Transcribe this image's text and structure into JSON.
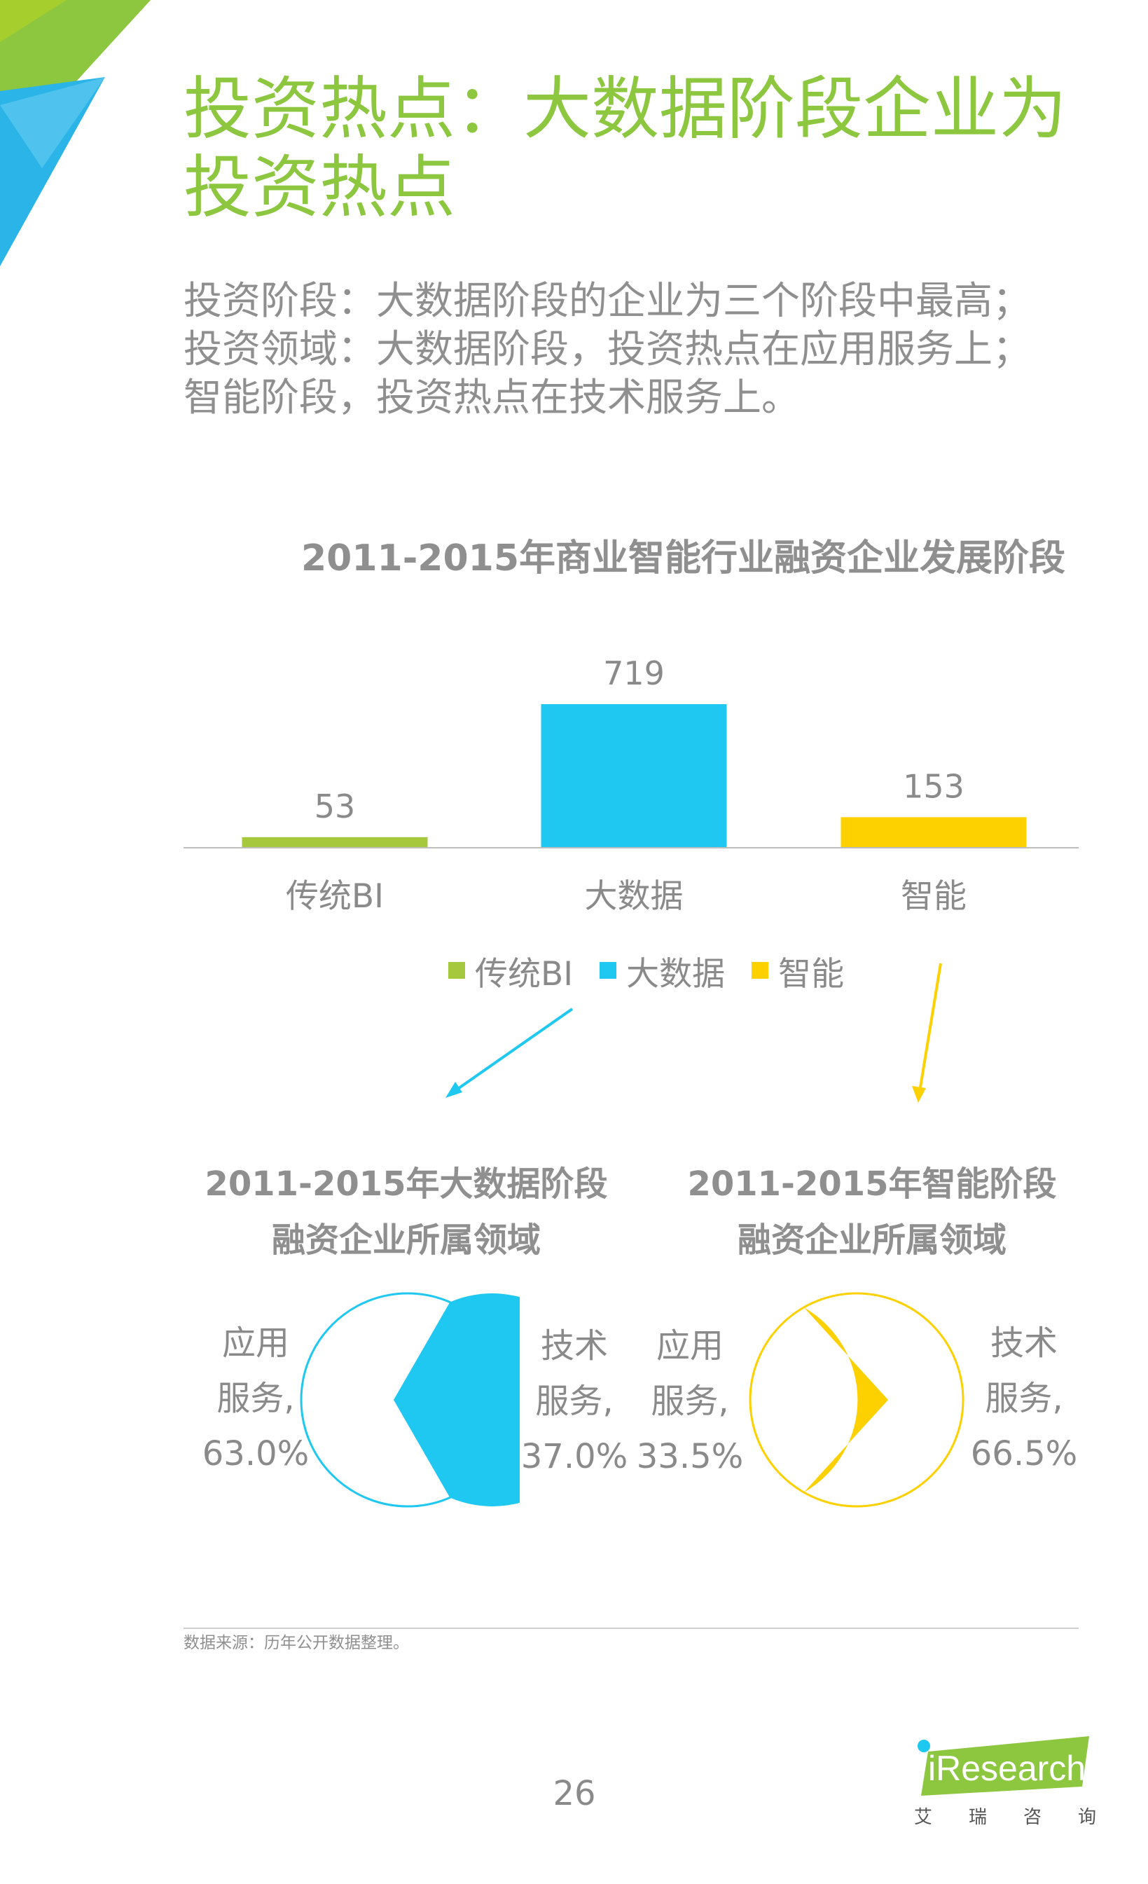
{
  "title": {
    "line1": "投资热点：大数据阶段企业为",
    "line2": "投资热点"
  },
  "subtitle": {
    "lines": [
      "投资阶段：大数据阶段的企业为三个阶段中最高；",
      "投资领域：大数据阶段，投资热点在应用服务上；",
      "智能阶段，投资热点在技术服务上。"
    ]
  },
  "colors": {
    "title_green": "#8dc63f",
    "bi_green": "#a6c83c",
    "bigdata_blue": "#1ec8f0",
    "smart_yellow": "#fdd000",
    "text_gray": "#8a8a8a"
  },
  "chart_data": [
    {
      "type": "bar",
      "title": "2011-2015年商业智能行业融资企业发展阶段",
      "categories": [
        "传统BI",
        "大数据",
        "智能"
      ],
      "values": [
        53,
        719,
        153
      ],
      "data_labels": [
        "53",
        "719",
        "153"
      ],
      "colors": [
        "#a6c83c",
        "#1ec8f0",
        "#fdd000"
      ],
      "legend": {
        "placement": "bottom",
        "entries": [
          {
            "label": "传统BI",
            "color": "#a6c83c"
          },
          {
            "label": "大数据",
            "color": "#1ec8f0"
          },
          {
            "label": "智能",
            "color": "#fdd000"
          }
        ]
      },
      "ylim": [
        0,
        760
      ],
      "grid": false,
      "xlabel": "",
      "ylabel": ""
    },
    {
      "type": "pie",
      "title_lines": [
        "2011-2015年大数据阶段",
        "融资企业所属领域"
      ],
      "slices": [
        {
          "label_lines": [
            "应用",
            "服务,",
            "63.0%"
          ],
          "value": 63.0,
          "color": "#1ec8f0",
          "filled": true
        },
        {
          "label_lines": [
            "技术",
            "服务,",
            "37.0%"
          ],
          "value": 37.0,
          "color": "#1ec8f0",
          "filled": false
        }
      ]
    },
    {
      "type": "pie",
      "title_lines": [
        "2011-2015年智能阶段",
        "融资企业所属领域"
      ],
      "slices": [
        {
          "label_lines": [
            "应用",
            "服务,",
            "33.5%"
          ],
          "value": 33.5,
          "color": "#fdd000",
          "filled": true
        },
        {
          "label_lines": [
            "技术",
            "服务,",
            "66.5%"
          ],
          "value": 66.5,
          "color": "#fdd000",
          "filled": false
        }
      ]
    }
  ],
  "source": "数据来源：历年公开数据整理。",
  "page_number": "26",
  "logo": {
    "word": "iResearch",
    "chinese": [
      "艾",
      "瑞",
      "咨",
      "询"
    ]
  }
}
